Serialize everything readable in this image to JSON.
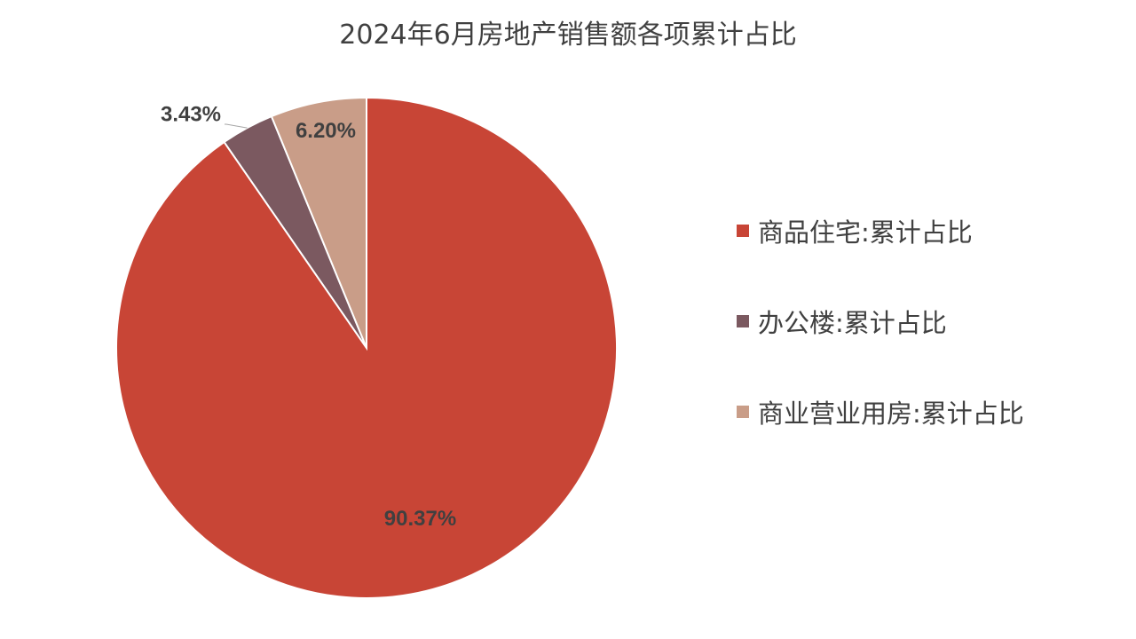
{
  "chart_data": {
    "type": "pie",
    "title": "2024年6月房地产销售额各项累计占比",
    "categories": [
      "商品住宅:累计占比",
      "办公楼:累计占比",
      "商业营业用房:累计占比"
    ],
    "values": [
      90.37,
      3.43,
      6.2
    ],
    "value_labels": [
      "90.37%",
      "3.43%",
      "6.20%"
    ],
    "colors": [
      "#C84536",
      "#7B5960",
      "#C99D88"
    ],
    "start_angle_deg": 0,
    "direction": "clockwise",
    "legend_position": "right"
  }
}
